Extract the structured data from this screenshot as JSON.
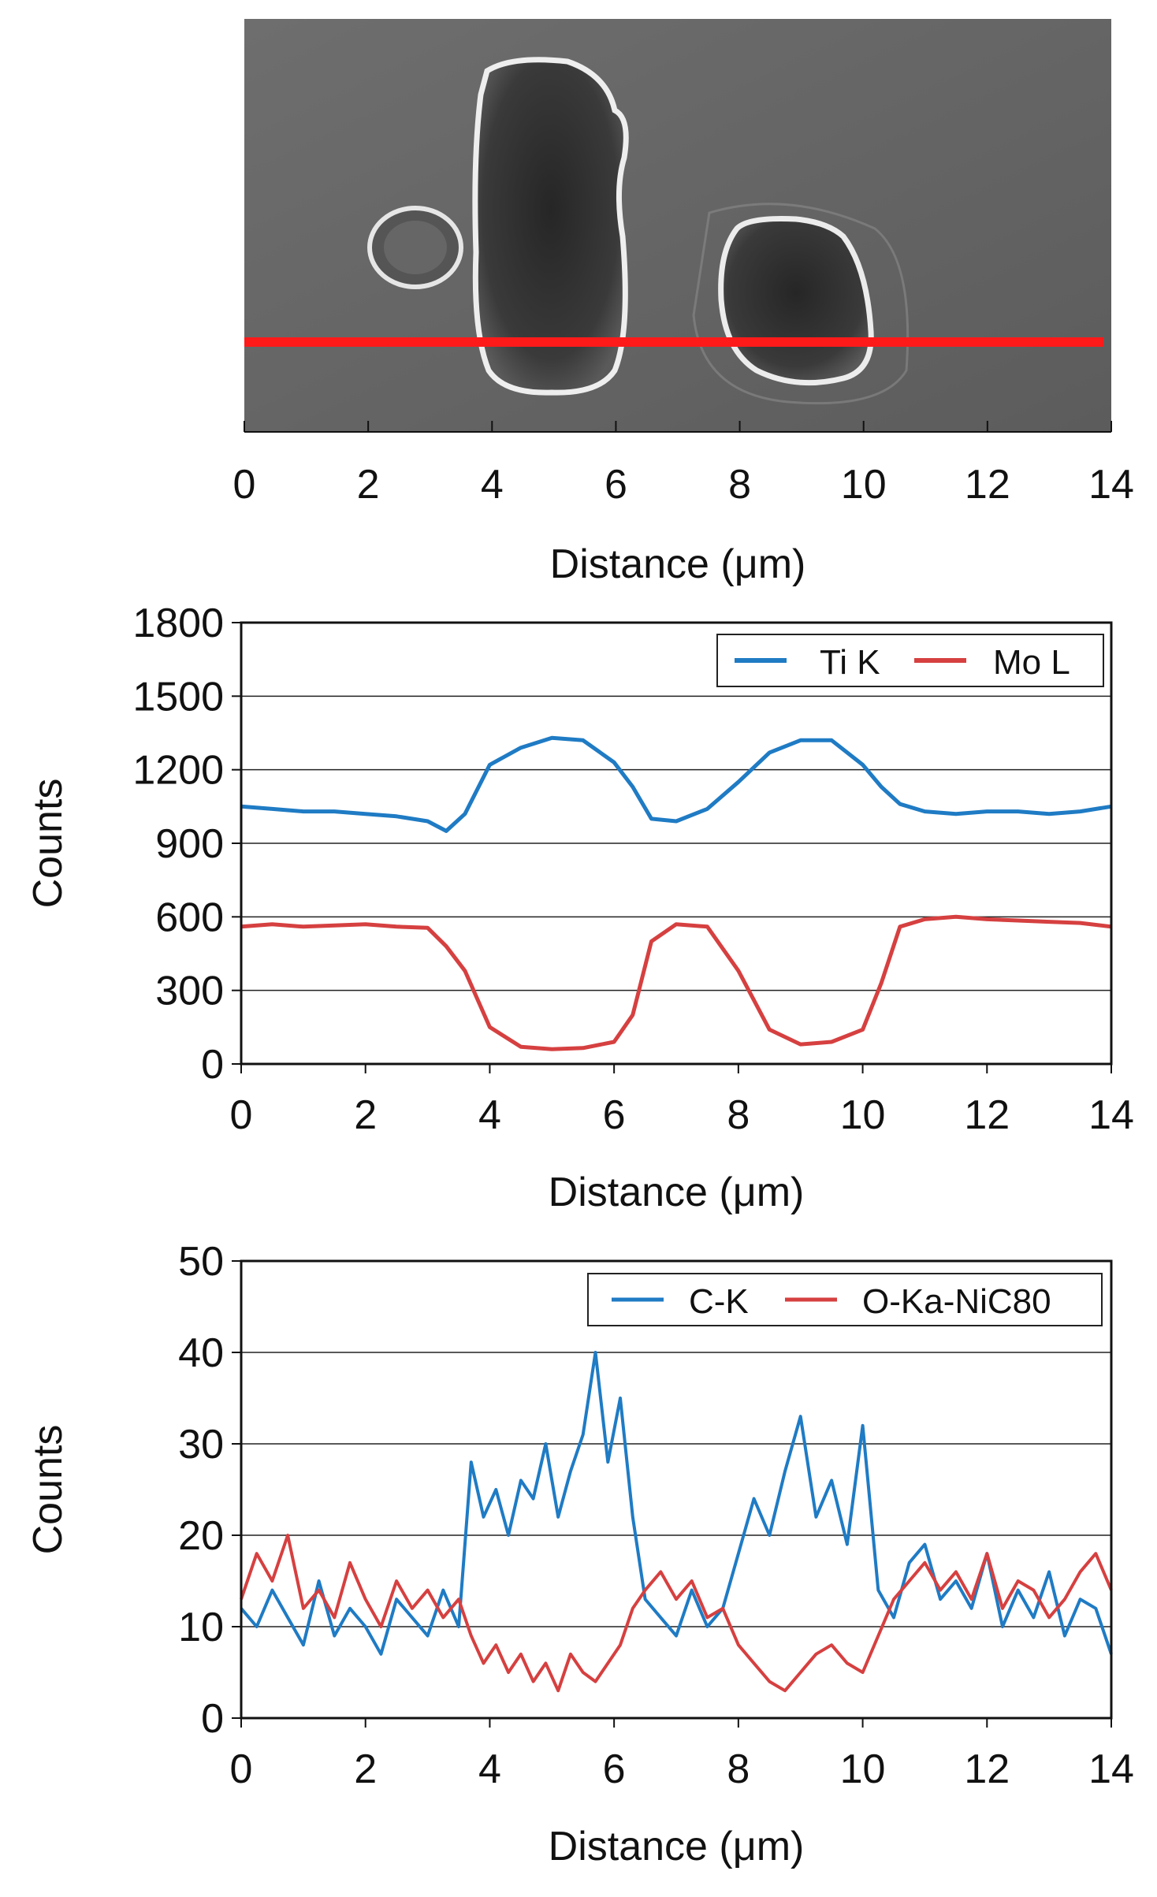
{
  "figure": {
    "sem_panel": {
      "x_label": "Distance (μm)",
      "x_ticks": [
        0,
        2,
        4,
        6,
        8,
        10,
        12,
        14
      ],
      "xlim": [
        0,
        14
      ],
      "scan_line_color": "#ff1a1a"
    }
  },
  "chart_data": [
    {
      "type": "line",
      "title": "",
      "xlabel": "Distance (μm)",
      "ylabel": "Counts",
      "xlim": [
        0,
        14
      ],
      "ylim": [
        0,
        1800
      ],
      "x_ticks": [
        0,
        2,
        4,
        6,
        8,
        10,
        12,
        14
      ],
      "y_ticks": [
        0,
        300,
        600,
        900,
        1200,
        1500,
        1800
      ],
      "grid": true,
      "legend_position": "top-right",
      "x": [
        0,
        0.5,
        1,
        1.5,
        2,
        2.5,
        3,
        3.3,
        3.6,
        4,
        4.5,
        5,
        5.5,
        6,
        6.3,
        6.6,
        7,
        7.5,
        8,
        8.5,
        9,
        9.5,
        10,
        10.3,
        10.6,
        11,
        11.5,
        12,
        12.5,
        13,
        13.5,
        14
      ],
      "series": [
        {
          "name": "Ti K",
          "color": "#1f7bc4",
          "values": [
            1050,
            1040,
            1030,
            1030,
            1020,
            1010,
            990,
            950,
            1020,
            1220,
            1290,
            1330,
            1320,
            1230,
            1130,
            1000,
            990,
            1040,
            1150,
            1270,
            1320,
            1320,
            1220,
            1130,
            1060,
            1030,
            1020,
            1030,
            1030,
            1020,
            1030,
            1050
          ]
        },
        {
          "name": "Mo L",
          "color": "#d64040",
          "values": [
            560,
            570,
            560,
            565,
            570,
            560,
            555,
            480,
            380,
            150,
            70,
            60,
            65,
            90,
            200,
            500,
            570,
            560,
            380,
            140,
            80,
            90,
            140,
            330,
            560,
            590,
            600,
            590,
            585,
            580,
            575,
            560
          ]
        }
      ]
    },
    {
      "type": "line",
      "title": "",
      "xlabel": "Distance (μm)",
      "ylabel": "Counts",
      "xlim": [
        0,
        14
      ],
      "ylim": [
        0,
        50
      ],
      "x_ticks": [
        0,
        2,
        4,
        6,
        8,
        10,
        12,
        14
      ],
      "y_ticks": [
        0,
        10,
        20,
        30,
        40,
        50
      ],
      "grid": true,
      "legend_position": "top-right",
      "x": [
        0,
        0.25,
        0.5,
        0.75,
        1,
        1.25,
        1.5,
        1.75,
        2,
        2.25,
        2.5,
        2.75,
        3,
        3.25,
        3.5,
        3.7,
        3.9,
        4.1,
        4.3,
        4.5,
        4.7,
        4.9,
        5.1,
        5.3,
        5.5,
        5.7,
        5.9,
        6.1,
        6.3,
        6.5,
        6.75,
        7,
        7.25,
        7.5,
        7.75,
        8,
        8.25,
        8.5,
        8.75,
        9,
        9.25,
        9.5,
        9.75,
        10,
        10.25,
        10.5,
        10.75,
        11,
        11.25,
        11.5,
        11.75,
        12,
        12.25,
        12.5,
        12.75,
        13,
        13.25,
        13.5,
        13.75,
        14
      ],
      "series": [
        {
          "name": "C-K",
          "color": "#1f7bc4",
          "values": [
            12,
            10,
            14,
            11,
            8,
            15,
            9,
            12,
            10,
            7,
            13,
            11,
            9,
            14,
            10,
            28,
            22,
            25,
            20,
            26,
            24,
            30,
            22,
            27,
            31,
            40,
            28,
            35,
            22,
            13,
            11,
            9,
            14,
            10,
            12,
            18,
            24,
            20,
            27,
            33,
            22,
            26,
            19,
            32,
            14,
            11,
            17,
            19,
            13,
            15,
            12,
            18,
            10,
            14,
            11,
            16,
            9,
            13,
            12,
            7
          ]
        },
        {
          "name": "O-Ka-NiC80",
          "color": "#d64040",
          "values": [
            13,
            18,
            15,
            20,
            12,
            14,
            11,
            17,
            13,
            10,
            15,
            12,
            14,
            11,
            13,
            9,
            6,
            8,
            5,
            7,
            4,
            6,
            3,
            7,
            5,
            4,
            6,
            8,
            12,
            14,
            16,
            13,
            15,
            11,
            12,
            8,
            6,
            4,
            3,
            5,
            7,
            8,
            6,
            5,
            9,
            13,
            15,
            17,
            14,
            16,
            13,
            18,
            12,
            15,
            14,
            11,
            13,
            16,
            18,
            14
          ]
        }
      ]
    }
  ]
}
